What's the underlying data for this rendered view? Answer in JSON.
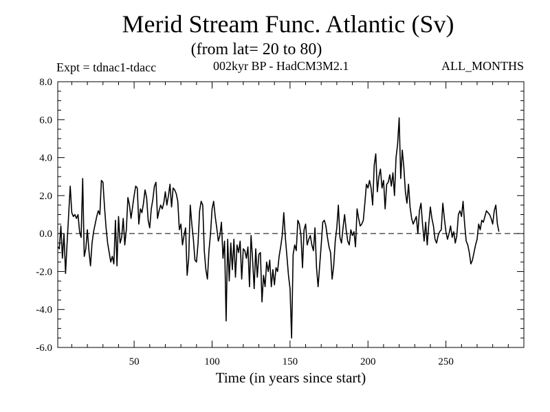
{
  "header": {
    "title": "Merid Stream Func. Atlantic (Sv)",
    "subtitle": "(from lat= 20 to 80)",
    "expt": "Expt = tdnac1-tdacc",
    "model": "002kyr BP - HadCM3M2.1",
    "period": "ALL_MONTHS"
  },
  "chart_data": {
    "type": "line",
    "title": "Merid Stream Func. Atlantic (Sv)",
    "subtitle": "(from lat= 20 to 80)",
    "xlabel": "Time (in years since start)",
    "ylabel": "",
    "xlim": [
      1,
      300
    ],
    "ylim": [
      -6.0,
      8.0
    ],
    "xticks": [
      50,
      100,
      150,
      200,
      250
    ],
    "xtick_labels": [
      "50",
      "100",
      "150",
      "200",
      "250"
    ],
    "yticks": [
      -6,
      -4,
      -2,
      0,
      2,
      4,
      6,
      8
    ],
    "ytick_labels": [
      "-6.0",
      "-4.0",
      "-2.0",
      "0.0",
      "2.0",
      "4.0",
      "6.0",
      "8.0"
    ],
    "zero_line": "dashed",
    "grid": false,
    "series": [
      {
        "name": "tdnac1-tdacc",
        "x_start": 1,
        "x_step": 1,
        "values": [
          -0.7,
          -0.8,
          0.4,
          -1.3,
          0.0,
          -2.1,
          -0.5,
          1.0,
          2.5,
          1.1,
          0.9,
          1.0,
          0.8,
          1.0,
          0.1,
          -0.2,
          2.9,
          -1.2,
          -0.8,
          0.2,
          -0.9,
          -1.7,
          -0.5,
          0.1,
          0.5,
          0.9,
          1.2,
          1.0,
          2.8,
          2.7,
          1.4,
          0.3,
          -0.5,
          -1.0,
          -1.5,
          -1.2,
          -1.6,
          0.7,
          -1.7,
          0.9,
          -0.5,
          -0.2,
          0.8,
          -0.6,
          0.2,
          1.9,
          1.5,
          0.8,
          1.4,
          2.0,
          2.5,
          2.4,
          0.5,
          1.3,
          1.1,
          1.6,
          2.3,
          1.9,
          0.7,
          0.3,
          1.3,
          1.8,
          2.5,
          2.7,
          0.8,
          1.2,
          1.5,
          1.3,
          1.6,
          2.2,
          1.5,
          2.0,
          2.6,
          1.4,
          2.4,
          2.3,
          2.1,
          1.7,
          0.2,
          0.5,
          -0.6,
          -0.1,
          0.3,
          -2.2,
          -1.3,
          1.5,
          0.5,
          -0.3,
          -1.4,
          -1.5,
          -0.5,
          1.2,
          1.7,
          1.5,
          -0.9,
          -1.9,
          -2.4,
          -0.9,
          0.0,
          1.3,
          1.7,
          0.9,
          0.3,
          -0.4,
          -0.1,
          0.6,
          -1.3,
          -0.4,
          -4.6,
          -0.3,
          -2.5,
          -0.5,
          -1.9,
          -0.3,
          -2.3,
          -0.6,
          -1.0,
          -0.4,
          -2.4,
          -0.8,
          -0.9,
          -1.3,
          -0.7,
          -2.8,
          -0.1,
          -1.4,
          -2.9,
          -0.8,
          -2.3,
          -1.1,
          -1.0,
          -3.6,
          -2.2,
          -2.8,
          -1.5,
          -2.0,
          -1.4,
          -2.8,
          -1.9,
          -2.7,
          -1.8,
          -2.0,
          -1.2,
          -0.7,
          -0.1,
          1.1,
          -0.2,
          -1.2,
          -2.2,
          -2.9,
          -5.5,
          -1.1,
          -0.6,
          -0.9,
          0.7,
          0.5,
          -0.1,
          -1.8,
          0.2,
          0.5,
          -0.6,
          -0.3,
          -0.1,
          -0.6,
          -0.9,
          0.3,
          -1.8,
          -2.8,
          -1.7,
          -0.6,
          0.6,
          0.7,
          0.4,
          -0.2,
          -0.7,
          -1.0,
          -2.4,
          -1.7,
          -0.4,
          0.3,
          1.5,
          -0.2,
          -0.5,
          0.3,
          1.0,
          0.2,
          -0.4,
          -0.6,
          0.2,
          -0.1,
          0.1,
          -0.7,
          1.3,
          0.8,
          0.4,
          0.5,
          0.7,
          1.6,
          2.6,
          2.4,
          2.8,
          2.4,
          1.5,
          3.6,
          4.2,
          2.2,
          3.0,
          3.4,
          2.4,
          2.8,
          1.3,
          2.6,
          2.7,
          3.1,
          2.5,
          3.2,
          2.0,
          4.0,
          4.7,
          6.1,
          2.9,
          4.4,
          3.5,
          2.2,
          1.6,
          2.6,
          1.4,
          0.8,
          0.5,
          0.7,
          0.9,
          0.0,
          1.2,
          1.6,
          0.5,
          -0.4,
          0.6,
          -0.6,
          0.5,
          1.4,
          0.8,
          0.4,
          -0.3,
          -0.5,
          -0.1,
          0.1,
          0.2,
          1.6,
          0.8,
          0.1,
          -0.3,
          0.0,
          0.4,
          -0.2,
          0.1,
          -0.5,
          -0.1,
          1.0,
          1.2,
          0.9,
          1.7,
          0.5,
          -0.4,
          -0.6,
          -1.0,
          -1.6,
          -1.4,
          -1.0,
          -0.6,
          -0.3,
          0.5,
          0.2,
          0.7,
          0.6,
          0.9,
          1.2,
          1.1,
          1.0,
          0.8,
          0.5,
          1.2,
          1.5,
          0.5,
          0.1
        ]
      }
    ]
  }
}
